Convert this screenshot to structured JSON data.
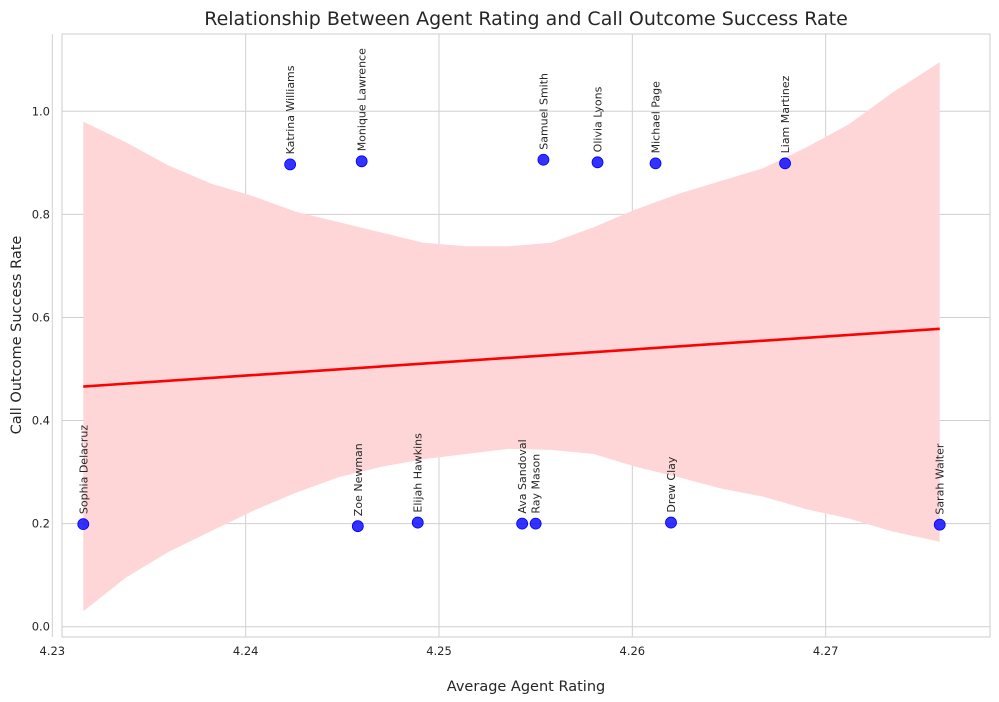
{
  "chart_data": {
    "type": "scatter",
    "title": "Relationship Between Agent Rating and Call Outcome Success Rate",
    "xlabel": "Average Agent Rating",
    "ylabel": "Call Outcome Success Rate",
    "xlim": [
      4.2305,
      4.2785
    ],
    "ylim": [
      -0.02,
      1.15
    ],
    "xticks": [
      4.23,
      4.24,
      4.25,
      4.26,
      4.27
    ],
    "xtick_labels": [
      "4.23",
      "4.24",
      "4.25",
      "4.26",
      "4.27"
    ],
    "yticks": [
      0.0,
      0.2,
      0.4,
      0.6,
      0.8,
      1.0
    ],
    "ytick_labels": [
      "0.0",
      "0.2",
      "0.4",
      "0.6",
      "0.8",
      "1.0"
    ],
    "grid": true,
    "points": [
      {
        "label": "Sophia Delacruz",
        "x": 4.2316,
        "y": 0.199
      },
      {
        "label": "Katrina Williams",
        "x": 4.2423,
        "y": 0.897
      },
      {
        "label": "Zoe Newman",
        "x": 4.2458,
        "y": 0.195
      },
      {
        "label": "Monique Lawrence",
        "x": 4.246,
        "y": 0.903
      },
      {
        "label": "Elijah Hawkins",
        "x": 4.2489,
        "y": 0.202
      },
      {
        "label": "Ava Sandoval",
        "x": 4.2543,
        "y": 0.2
      },
      {
        "label": "Ray Mason",
        "x": 4.255,
        "y": 0.2
      },
      {
        "label": "Samuel Smith",
        "x": 4.2554,
        "y": 0.906
      },
      {
        "label": "Olivia Lyons",
        "x": 4.2582,
        "y": 0.901
      },
      {
        "label": "Michael Page",
        "x": 4.2612,
        "y": 0.899
      },
      {
        "label": "Drew Clay",
        "x": 4.262,
        "y": 0.202
      },
      {
        "label": "Liam Martinez",
        "x": 4.2679,
        "y": 0.899
      },
      {
        "label": "Sarah Walter",
        "x": 4.2759,
        "y": 0.198
      }
    ],
    "regression": {
      "x": [
        4.2316,
        4.2759
      ],
      "y": [
        0.466,
        0.578
      ]
    },
    "confidence_band": {
      "x": [
        4.2316,
        4.2338,
        4.236,
        4.2382,
        4.2404,
        4.2426,
        4.2448,
        4.247,
        4.2492,
        4.2514,
        4.2536,
        4.2558,
        4.258,
        4.2602,
        4.2624,
        4.2646,
        4.2668,
        4.269,
        4.2712,
        4.2734,
        4.2759
      ],
      "upper": [
        0.98,
        0.94,
        0.895,
        0.86,
        0.835,
        0.805,
        0.785,
        0.765,
        0.745,
        0.738,
        0.738,
        0.745,
        0.775,
        0.81,
        0.84,
        0.865,
        0.89,
        0.93,
        0.975,
        1.035,
        1.095
      ],
      "lower": [
        0.03,
        0.095,
        0.145,
        0.185,
        0.225,
        0.26,
        0.29,
        0.31,
        0.325,
        0.335,
        0.345,
        0.343,
        0.335,
        0.31,
        0.29,
        0.268,
        0.252,
        0.228,
        0.21,
        0.185,
        0.165
      ]
    },
    "colors": {
      "points": "#0000ff",
      "line": "#ff0000",
      "band": "#ffd6d8",
      "grid": "#d0d0d0",
      "axes": "#cccccc"
    }
  }
}
